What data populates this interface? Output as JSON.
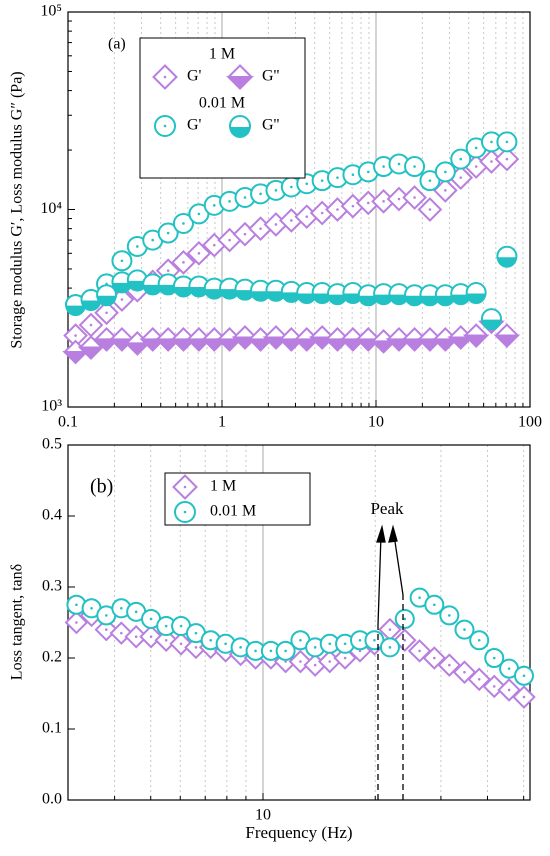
{
  "chart_data": [
    {
      "type": "scatter",
      "panel_label": "(a)",
      "ylabel": "Storage modulus G′, Loss modulus G″ (Pa)",
      "log_x": true,
      "log_y": true,
      "grid": "x",
      "xlim": [
        0.1,
        100
      ],
      "xticks": [
        0.1,
        1,
        10,
        100
      ],
      "ylim": [
        1000,
        100000
      ],
      "yticks": [
        {
          "value": 1000,
          "label": "10³"
        },
        {
          "value": 10000,
          "label": "10⁴"
        },
        {
          "value": 100000,
          "label": "10⁵"
        }
      ],
      "x": [
        0.112,
        0.141,
        0.178,
        0.224,
        0.282,
        0.355,
        0.447,
        0.562,
        0.708,
        0.891,
        1.12,
        1.41,
        1.78,
        2.24,
        2.82,
        3.55,
        4.47,
        5.62,
        7.08,
        8.91,
        11.2,
        14.1,
        17.8,
        22.4,
        28.2,
        35.5,
        44.7,
        56.2,
        70.8
      ],
      "series": [
        {
          "name": "G'",
          "group": "1 M",
          "color": "#b97fe0",
          "marker": "diamond-dot",
          "values": [
            2300,
            2600,
            3000,
            3500,
            3900,
            4300,
            4900,
            5400,
            6000,
            6600,
            7000,
            7500,
            8000,
            8400,
            8800,
            9200,
            9600,
            10000,
            10400,
            10800,
            11000,
            11300,
            11500,
            10000,
            12500,
            14500,
            16500,
            17500,
            18000
          ]
        },
        {
          "name": "G''",
          "group": "1 M",
          "color": "#b97fe0",
          "marker": "diamond-half",
          "values": [
            1900,
            2000,
            2200,
            2200,
            2100,
            2200,
            2200,
            2200,
            2200,
            2200,
            2200,
            2250,
            2200,
            2250,
            2200,
            2200,
            2250,
            2200,
            2200,
            2200,
            2150,
            2200,
            2200,
            2200,
            2200,
            2250,
            2300,
            2700,
            2300
          ]
        },
        {
          "name": "G'",
          "group": "0.01 M",
          "color": "#22c1c3",
          "marker": "circle-dot",
          "values": [
            3300,
            3500,
            4200,
            5500,
            6500,
            7000,
            7600,
            8500,
            9500,
            10500,
            11000,
            11500,
            12000,
            12500,
            13000,
            13500,
            14000,
            14500,
            15000,
            15500,
            16500,
            17000,
            16500,
            14000,
            15500,
            18000,
            20500,
            22000,
            22000
          ]
        },
        {
          "name": "G''",
          "group": "0.01 M",
          "color": "#22c1c3",
          "marker": "circle-half",
          "values": [
            3300,
            3500,
            3700,
            4300,
            4400,
            4200,
            4200,
            4100,
            4100,
            4000,
            4000,
            3950,
            3900,
            3900,
            3850,
            3800,
            3800,
            3750,
            3800,
            3700,
            3750,
            3750,
            3700,
            3700,
            3700,
            3750,
            3800,
            2800,
            5800
          ]
        }
      ]
    },
    {
      "type": "scatter",
      "panel_label": "(b)",
      "xlabel": "Frequency (Hz)",
      "ylabel": "Loss tangent, tanδ",
      "annotation": "Peak",
      "log_x": true,
      "log_y": false,
      "grid": "x",
      "xlim": [
        3,
        52
      ],
      "xticks": [
        10
      ],
      "ylim": [
        0,
        0.5
      ],
      "yticks": [
        {
          "value": 0,
          "label": "0.0"
        },
        0.1,
        0.2,
        0.3,
        0.4,
        0.5
      ],
      "x": [
        3.16,
        3.47,
        3.8,
        4.17,
        4.57,
        5.01,
        5.5,
        6.03,
        6.61,
        7.24,
        7.94,
        8.71,
        9.55,
        10.5,
        11.5,
        12.6,
        13.8,
        15.1,
        16.6,
        18.2,
        19.9,
        21.9,
        24.0,
        26.3,
        28.8,
        31.6,
        34.7,
        38.0,
        41.7,
        45.7,
        50.1
      ],
      "series": [
        {
          "name": "1 M",
          "color": "#b97fe0",
          "marker": "diamond-dot",
          "values": [
            0.25,
            0.26,
            0.24,
            0.235,
            0.23,
            0.23,
            0.225,
            0.22,
            0.215,
            0.215,
            0.21,
            0.205,
            0.2,
            0.2,
            0.195,
            0.195,
            0.19,
            0.195,
            0.2,
            0.21,
            0.22,
            0.24,
            0.225,
            0.21,
            0.2,
            0.19,
            0.18,
            0.17,
            0.16,
            0.155,
            0.145
          ]
        },
        {
          "name": "0.01 M",
          "color": "#22c1c3",
          "marker": "circle-dot",
          "values": [
            0.275,
            0.27,
            0.26,
            0.27,
            0.265,
            0.255,
            0.245,
            0.245,
            0.235,
            0.225,
            0.22,
            0.215,
            0.21,
            0.21,
            0.21,
            0.225,
            0.215,
            0.22,
            0.22,
            0.225,
            0.225,
            0.215,
            0.255,
            0.285,
            0.275,
            0.26,
            0.24,
            0.225,
            0.2,
            0.185,
            0.175
          ]
        }
      ]
    }
  ]
}
